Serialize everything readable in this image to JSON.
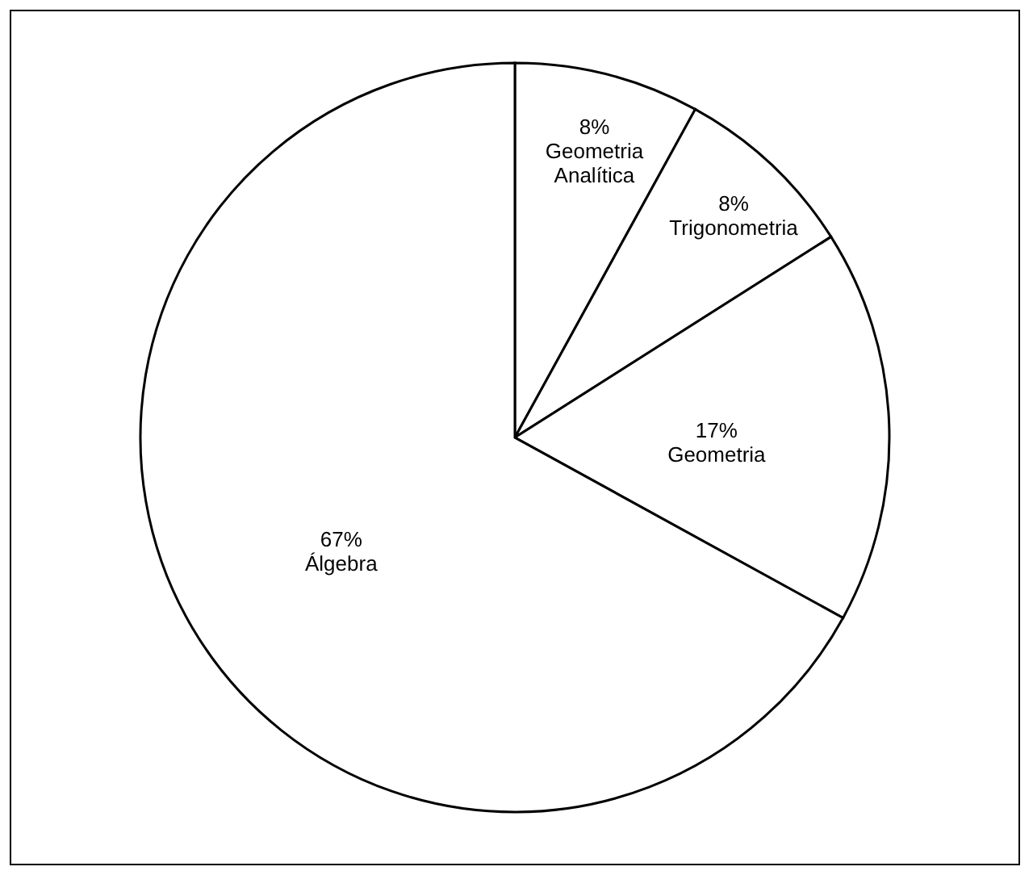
{
  "chart_data": {
    "type": "pie",
    "categories": [
      "Geometria Analítica",
      "Trigonometria",
      "Geometria",
      "Álgebra"
    ],
    "values": [
      8,
      8,
      17,
      67
    ],
    "value_labels": [
      "8%",
      "8%",
      "17%",
      "67%"
    ],
    "colors": [
      "#ffffff",
      "#ffffff",
      "#ffffff",
      "#ffffff"
    ]
  }
}
